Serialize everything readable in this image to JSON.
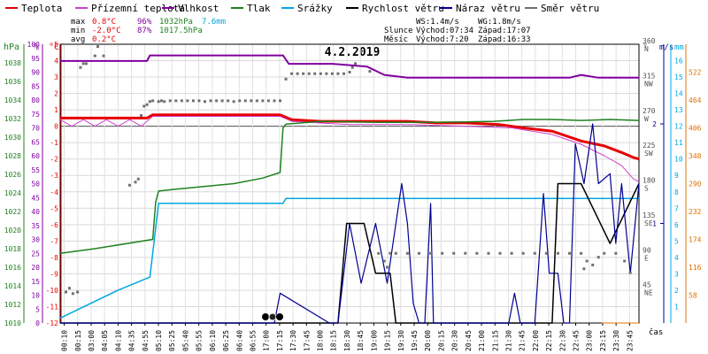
{
  "chart_data": {
    "type": "line",
    "title": "4.2.2019",
    "x_unit": "čas",
    "legend": [
      {
        "key": "temp",
        "label": "Teplota",
        "color": "#e60000"
      },
      {
        "key": "ground",
        "label": "Přízemní teplota",
        "color": "#d040d0"
      },
      {
        "key": "hum",
        "label": "Vlhkost",
        "color": "#8000a0"
      },
      {
        "key": "press",
        "label": "Tlak",
        "color": "#208020"
      },
      {
        "key": "rain",
        "label": "Srážky",
        "color": "#00a8e0"
      },
      {
        "key": "wind",
        "label": "Rychlost větru",
        "color": "#000000"
      },
      {
        "key": "gust",
        "label": "Náraz větru",
        "color": "#000090"
      },
      {
        "key": "dir",
        "label": "Směr větru",
        "color": "#707070"
      }
    ],
    "summary": {
      "max_label": "max",
      "max_temp": "0.8°C",
      "max_hum": "96%",
      "max_press": "1032hPa",
      "max_rain": "7.6mm",
      "min_label": "min",
      "min_temp": "-2.0°C",
      "min_hum": "87%",
      "min_press": "1017.5hPa",
      "avg_label": "avg",
      "avg_temp": "0.2°C"
    },
    "info": {
      "ws": "WS:1.4m/s",
      "wg": "WG:1.8m/s",
      "sun_label": "Slunce",
      "sun_rise": "Východ:07:34",
      "sun_set": "Západ:17:07",
      "moon_label": "Měsíc",
      "moon_rise": "Východ:7:20",
      "moon_set": "Západ:16:33"
    },
    "axes": {
      "hpa": {
        "title": "hPa",
        "ticks": [
          "1010",
          "1012",
          "1014",
          "1016",
          "1018",
          "1020",
          "1022",
          "1024",
          "1026",
          "1028",
          "1030",
          "1032",
          "1034",
          "1036",
          "1038"
        ],
        "range": [
          1010,
          1040
        ],
        "color": "#208020"
      },
      "pct": {
        "title": "%",
        "ticks": [
          "0",
          "5",
          "10",
          "15",
          "20",
          "25",
          "30",
          "35",
          "40",
          "45",
          "50",
          "55",
          "60",
          "65",
          "70",
          "75",
          "80",
          "85",
          "90",
          "95",
          "100"
        ],
        "range": [
          0,
          100
        ],
        "color": "#8000a0"
      },
      "temp": {
        "title": "°C",
        "ticks": [
          "-12",
          "-11",
          "-10",
          "-9",
          "-8",
          "-7",
          "-6",
          "-5",
          "-4",
          "-3",
          "-2",
          "-1",
          "0",
          "1",
          "2",
          "3",
          "4",
          "5"
        ],
        "range": [
          -12,
          5
        ],
        "color": "#e60000"
      },
      "deg": {
        "title": "°",
        "ticks": [
          "45",
          "90",
          "135",
          "180",
          "225",
          "270",
          "315",
          "360"
        ],
        "range": [
          0,
          360
        ],
        "dirs": [
          "NE",
          "E",
          "SE",
          "S",
          "SW",
          "W",
          "NW",
          "N"
        ],
        "color": "#505050"
      },
      "ms": {
        "title": "m/s",
        "ticks": [
          "1",
          "2"
        ],
        "range": [
          0,
          2.8
        ],
        "color": "#000090"
      },
      "mm": {
        "title": "mm",
        "ticks": [
          "1",
          "2",
          "3",
          "4",
          "5",
          "6",
          "7",
          "8",
          "9",
          "10",
          "11",
          "12",
          "13",
          "14",
          "15",
          "16"
        ],
        "range": [
          0,
          17
        ],
        "color": "#00a8e0"
      },
      "wm2": {
        "ticks": [
          "58",
          "116",
          "174",
          "232",
          "290",
          "348",
          "406",
          "464",
          "522"
        ],
        "range": [
          0,
          580
        ],
        "color": "#e07000"
      }
    },
    "x_ticks": [
      "00:10",
      "00:15",
      "03:00",
      "04:05",
      "04:10",
      "04:35",
      "04:55",
      "05:10",
      "05:25",
      "05:40",
      "05:55",
      "06:10",
      "06:25",
      "06:40",
      "06:55",
      "17:00",
      "17:15",
      "17:30",
      "17:45",
      "18:00",
      "18:15",
      "18:30",
      "18:45",
      "19:00",
      "19:15",
      "19:30",
      "19:45",
      "20:00",
      "20:15",
      "20:30",
      "20:45",
      "21:00",
      "21:15",
      "21:30",
      "21:45",
      "22:00",
      "22:15",
      "22:30",
      "22:45",
      "23:00",
      "23:15",
      "23:30",
      "23:45"
    ],
    "x_range": [
      0,
      1
    ],
    "series": [
      {
        "key": "hum",
        "x": [
          0,
          0.15,
          0.155,
          0.385,
          0.395,
          0.47,
          0.53,
          0.56,
          0.6,
          0.7,
          0.8,
          0.88,
          0.9,
          0.93,
          1
        ],
        "values": [
          94,
          94,
          96,
          96,
          93,
          93,
          92,
          89,
          88,
          88,
          88,
          88,
          89,
          88,
          88
        ]
      },
      {
        "key": "temp",
        "x": [
          0,
          0.15,
          0.16,
          0.38,
          0.4,
          0.45,
          0.5,
          0.55,
          0.6,
          0.65,
          0.7,
          0.76,
          0.8,
          0.85,
          0.9,
          0.94,
          0.97,
          0.99,
          1
        ],
        "values": [
          0.5,
          0.5,
          0.7,
          0.7,
          0.4,
          0.3,
          0.3,
          0.3,
          0.3,
          0.2,
          0.2,
          0.1,
          -0.1,
          -0.3,
          -0.9,
          -1.2,
          -1.6,
          -1.9,
          -2.0
        ]
      },
      {
        "key": "ground",
        "x": [
          0,
          0.02,
          0.04,
          0.06,
          0.08,
          0.1,
          0.12,
          0.14,
          0.16,
          0.38,
          0.4,
          0.5,
          0.6,
          0.7,
          0.78,
          0.85,
          0.9,
          0.94,
          0.97,
          0.99,
          1
        ],
        "values": [
          0.4,
          0.0,
          0.4,
          0.0,
          0.4,
          0.0,
          0.4,
          0.0,
          0.6,
          0.6,
          0.3,
          0.1,
          0.1,
          0.0,
          -0.1,
          -0.5,
          -1.1,
          -1.8,
          -2.4,
          -3.2,
          -3.4
        ]
      },
      {
        "key": "press",
        "x": [
          0,
          0.06,
          0.16,
          0.165,
          0.17,
          0.2,
          0.25,
          0.3,
          0.35,
          0.38,
          0.385,
          0.39,
          0.45,
          0.55,
          0.65,
          0.75,
          0.8,
          0.85,
          0.9,
          0.95,
          1
        ],
        "values": [
          1017.5,
          1018,
          1019,
          1023,
          1024.2,
          1024.4,
          1024.7,
          1025,
          1025.6,
          1026.2,
          1031,
          1031.4,
          1031.7,
          1031.6,
          1031.6,
          1031.7,
          1031.9,
          1031.9,
          1031.8,
          1031.9,
          1031.8
        ]
      },
      {
        "key": "rain",
        "x": [
          0,
          0.1,
          0.155,
          0.17,
          0.38,
          0.385,
          0.39,
          1
        ],
        "values": [
          0.3,
          2.0,
          2.8,
          7.3,
          7.3,
          7.3,
          7.6,
          7.6
        ]
      },
      {
        "key": "wind",
        "x": [
          0,
          0.48,
          0.495,
          0.525,
          0.545,
          0.57,
          0.58,
          0.6,
          0.84,
          0.85,
          0.86,
          0.87,
          0.9,
          0.95,
          1
        ],
        "values": [
          0,
          0,
          1,
          1,
          0.5,
          0.5,
          0,
          0,
          0,
          0,
          1.4,
          1.4,
          1.4,
          0.8,
          1.4
        ]
      },
      {
        "key": "gust",
        "x": [
          0,
          0.37,
          0.38,
          0.465,
          0.48,
          0.5,
          0.52,
          0.545,
          0.565,
          0.59,
          0.6,
          0.61,
          0.62,
          0.63,
          0.64,
          0.645,
          0.66,
          0.775,
          0.785,
          0.795,
          0.82,
          0.835,
          0.845,
          0.86,
          0.87,
          0.88,
          0.89,
          0.905,
          0.92,
          0.93,
          0.95,
          0.96,
          0.97,
          0.985,
          1
        ],
        "values": [
          0,
          0,
          0.3,
          0,
          0,
          1,
          0.4,
          1,
          0.4,
          1.4,
          1,
          0.2,
          0,
          0,
          1.2,
          0,
          0,
          0,
          0.3,
          0,
          0,
          1.3,
          0.5,
          0.5,
          0,
          0,
          1.8,
          1.4,
          2.0,
          1.4,
          1.5,
          0.8,
          1.4,
          0.5,
          1.4
        ]
      },
      {
        "key": "dir",
        "points": [
          [
            0.01,
            40
          ],
          [
            0.016,
            45
          ],
          [
            0.022,
            38
          ],
          [
            0.03,
            40
          ],
          [
            0.035,
            330
          ],
          [
            0.04,
            335
          ],
          [
            0.045,
            335
          ],
          [
            0.06,
            345
          ],
          [
            0.065,
            357
          ],
          [
            0.075,
            345
          ],
          [
            0.12,
            178
          ],
          [
            0.13,
            182
          ],
          [
            0.135,
            186
          ],
          [
            0.14,
            268
          ],
          [
            0.145,
            280
          ],
          [
            0.15,
            282
          ],
          [
            0.155,
            286
          ],
          [
            0.16,
            287
          ],
          [
            0.17,
            286
          ],
          [
            0.175,
            287
          ],
          [
            0.18,
            286
          ],
          [
            0.19,
            287
          ],
          [
            0.2,
            287
          ],
          [
            0.21,
            287
          ],
          [
            0.22,
            287
          ],
          [
            0.23,
            287
          ],
          [
            0.24,
            287
          ],
          [
            0.25,
            286
          ],
          [
            0.26,
            287
          ],
          [
            0.27,
            287
          ],
          [
            0.28,
            287
          ],
          [
            0.29,
            287
          ],
          [
            0.3,
            286
          ],
          [
            0.31,
            287
          ],
          [
            0.32,
            287
          ],
          [
            0.33,
            287
          ],
          [
            0.34,
            287
          ],
          [
            0.35,
            287
          ],
          [
            0.36,
            287
          ],
          [
            0.37,
            287
          ],
          [
            0.38,
            287
          ],
          [
            0.39,
            315
          ],
          [
            0.4,
            322
          ],
          [
            0.41,
            322
          ],
          [
            0.42,
            322
          ],
          [
            0.43,
            322
          ],
          [
            0.44,
            322
          ],
          [
            0.45,
            322
          ],
          [
            0.46,
            322
          ],
          [
            0.47,
            322
          ],
          [
            0.48,
            322
          ],
          [
            0.49,
            322
          ],
          [
            0.5,
            324
          ],
          [
            0.505,
            330
          ],
          [
            0.51,
            335
          ],
          [
            0.535,
            325
          ],
          [
            0.55,
            90
          ],
          [
            0.56,
            80
          ],
          [
            0.565,
            72
          ],
          [
            0.57,
            90
          ],
          [
            0.58,
            90
          ],
          [
            0.6,
            90
          ],
          [
            0.62,
            90
          ],
          [
            0.64,
            90
          ],
          [
            0.66,
            90
          ],
          [
            0.68,
            90
          ],
          [
            0.7,
            90
          ],
          [
            0.72,
            90
          ],
          [
            0.74,
            90
          ],
          [
            0.76,
            90
          ],
          [
            0.78,
            90
          ],
          [
            0.8,
            90
          ],
          [
            0.82,
            90
          ],
          [
            0.84,
            90
          ],
          [
            0.86,
            90
          ],
          [
            0.88,
            90
          ],
          [
            0.9,
            90
          ],
          [
            0.905,
            70
          ],
          [
            0.91,
            80
          ],
          [
            0.92,
            75
          ],
          [
            0.93,
            85
          ],
          [
            0.94,
            90
          ],
          [
            0.96,
            90
          ],
          [
            0.975,
            80
          ],
          [
            0.985,
            65
          ]
        ]
      }
    ]
  }
}
